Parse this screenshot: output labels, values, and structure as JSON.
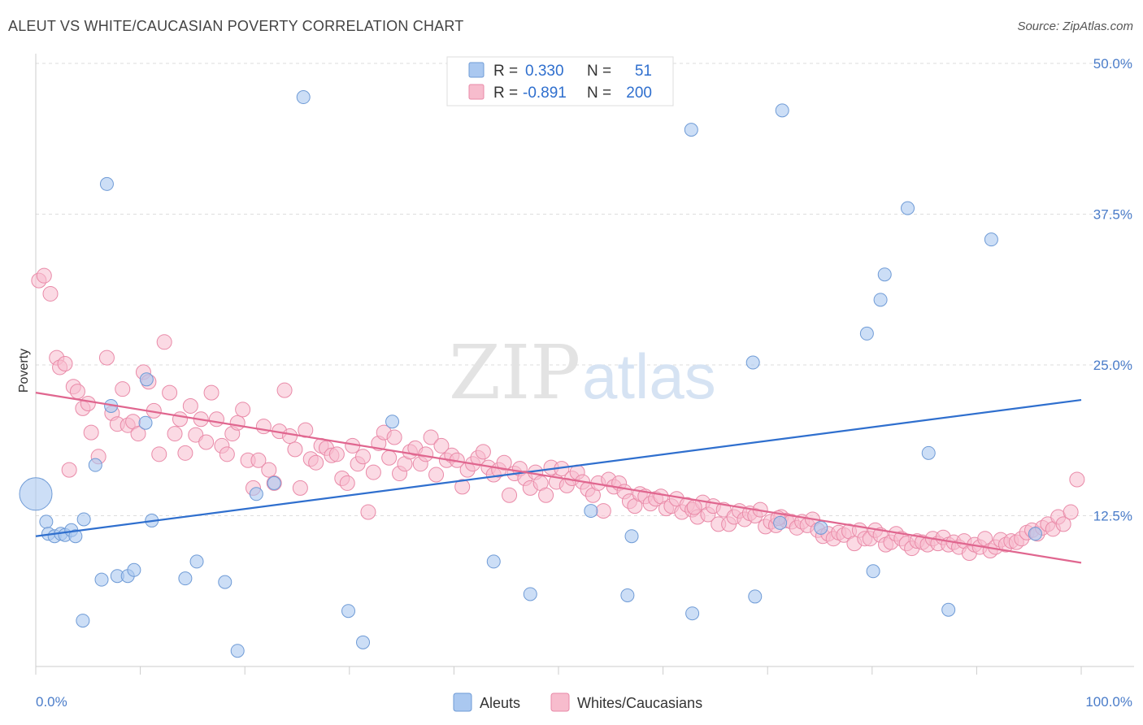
{
  "header": {
    "title": "ALEUT VS WHITE/CAUCASIAN POVERTY CORRELATION CHART",
    "source": "Source: ZipAtlas.com"
  },
  "watermark": {
    "zip": "ZIP",
    "atlas": "atlas"
  },
  "legend": {
    "rows": [
      {
        "r_label": "R =",
        "r_value": "0.330",
        "n_label": "N =",
        "n_value": "51",
        "color": "#aac8f0",
        "stroke": "#6f9bd6"
      },
      {
        "r_label": "R =",
        "r_value": "-0.891",
        "n_label": "N =",
        "n_value": "200",
        "color": "#f7bccd",
        "stroke": "#e98aa8"
      }
    ]
  },
  "colors": {
    "aleut_fill": "#aac8f0",
    "aleut_stroke": "#6f9bd6",
    "aleut_line": "#2f6fce",
    "white_fill": "#f7bccd",
    "white_stroke": "#e98aa8",
    "white_line": "#e0668f",
    "value_text": "#2f6fce"
  },
  "chart_data": {
    "type": "scatter",
    "title": "ALEUT VS WHITE/CAUCASIAN POVERTY CORRELATION CHART",
    "xlabel": "",
    "ylabel": "Poverty",
    "xlim": [
      0,
      100
    ],
    "ylim": [
      0,
      50
    ],
    "x_tick_labels": [
      "0.0%",
      "100.0%"
    ],
    "y_ticks": [
      12.5,
      25.0,
      37.5,
      50.0
    ],
    "y_tick_labels": [
      "12.5%",
      "25.0%",
      "37.5%",
      "50.0%"
    ],
    "grid": true,
    "legend_placement": "top-center",
    "series": [
      {
        "name": "Aleuts",
        "trend": [
          [
            0,
            10.8
          ],
          [
            100,
            22.1
          ]
        ],
        "points": [
          [
            0,
            14.3
          ],
          [
            1,
            12.0
          ],
          [
            1.2,
            11.0
          ],
          [
            1.8,
            10.8
          ],
          [
            2.4,
            11.0
          ],
          [
            2.8,
            10.9
          ],
          [
            3.4,
            11.3
          ],
          [
            3.8,
            10.8
          ],
          [
            4.6,
            12.2
          ],
          [
            4.5,
            3.8
          ],
          [
            5.7,
            16.7
          ],
          [
            6.3,
            7.2
          ],
          [
            6.8,
            40.0
          ],
          [
            7.2,
            21.6
          ],
          [
            7.8,
            7.5
          ],
          [
            8.8,
            7.5
          ],
          [
            9.4,
            8.0
          ],
          [
            10.5,
            20.2
          ],
          [
            10.6,
            23.8
          ],
          [
            11.1,
            12.1
          ],
          [
            14.3,
            7.3
          ],
          [
            15.4,
            8.7
          ],
          [
            18.1,
            7.0
          ],
          [
            19.3,
            1.3
          ],
          [
            21.1,
            14.3
          ],
          [
            22.8,
            15.2
          ],
          [
            25.6,
            47.2
          ],
          [
            29.9,
            4.6
          ],
          [
            31.3,
            2.0
          ],
          [
            34.1,
            20.3
          ],
          [
            43.8,
            8.7
          ],
          [
            47.3,
            6.0
          ],
          [
            53.1,
            12.9
          ],
          [
            56.6,
            5.9
          ],
          [
            57.0,
            10.8
          ],
          [
            62.7,
            44.5
          ],
          [
            62.8,
            4.4
          ],
          [
            68.6,
            25.2
          ],
          [
            68.8,
            5.8
          ],
          [
            71.4,
            46.1
          ],
          [
            71.2,
            11.9
          ],
          [
            75.1,
            11.5
          ],
          [
            79.5,
            27.6
          ],
          [
            80.1,
            7.9
          ],
          [
            80.8,
            30.4
          ],
          [
            81.2,
            32.5
          ],
          [
            83.4,
            38.0
          ],
          [
            85.4,
            17.7
          ],
          [
            87.3,
            4.7
          ],
          [
            91.4,
            35.4
          ],
          [
            95.6,
            11.0
          ]
        ]
      },
      {
        "name": "Whites/Caucasians",
        "trend": [
          [
            0,
            22.7
          ],
          [
            100,
            8.6
          ]
        ],
        "points": [
          [
            0.3,
            32.0
          ],
          [
            0.8,
            32.4
          ],
          [
            1.4,
            30.9
          ],
          [
            2.0,
            25.6
          ],
          [
            2.3,
            24.8
          ],
          [
            2.8,
            25.1
          ],
          [
            3.2,
            16.3
          ],
          [
            3.6,
            23.2
          ],
          [
            4.0,
            22.8
          ],
          [
            4.5,
            21.4
          ],
          [
            5.0,
            21.8
          ],
          [
            5.3,
            19.4
          ],
          [
            6.0,
            17.4
          ],
          [
            6.8,
            25.6
          ],
          [
            7.3,
            21.0
          ],
          [
            7.8,
            20.1
          ],
          [
            8.3,
            23.0
          ],
          [
            8.8,
            20.0
          ],
          [
            9.3,
            20.3
          ],
          [
            9.8,
            19.3
          ],
          [
            10.3,
            24.4
          ],
          [
            10.8,
            23.6
          ],
          [
            11.3,
            21.2
          ],
          [
            11.8,
            17.6
          ],
          [
            12.3,
            26.9
          ],
          [
            12.8,
            22.7
          ],
          [
            13.3,
            19.3
          ],
          [
            13.8,
            20.5
          ],
          [
            14.3,
            17.7
          ],
          [
            14.8,
            21.6
          ],
          [
            15.3,
            19.2
          ],
          [
            15.8,
            20.5
          ],
          [
            16.3,
            18.6
          ],
          [
            16.8,
            22.7
          ],
          [
            17.3,
            20.5
          ],
          [
            17.8,
            18.3
          ],
          [
            18.3,
            17.6
          ],
          [
            18.8,
            19.3
          ],
          [
            19.3,
            20.2
          ],
          [
            19.8,
            21.3
          ],
          [
            20.3,
            17.1
          ],
          [
            20.8,
            14.8
          ],
          [
            21.3,
            17.1
          ],
          [
            21.8,
            19.9
          ],
          [
            22.3,
            16.3
          ],
          [
            22.8,
            15.2
          ],
          [
            23.3,
            19.5
          ],
          [
            23.8,
            22.9
          ],
          [
            24.3,
            19.1
          ],
          [
            24.8,
            18.0
          ],
          [
            25.3,
            14.8
          ],
          [
            25.8,
            19.6
          ],
          [
            26.3,
            17.2
          ],
          [
            26.8,
            16.9
          ],
          [
            27.3,
            18.3
          ],
          [
            27.8,
            18.1
          ],
          [
            28.3,
            17.5
          ],
          [
            28.8,
            17.6
          ],
          [
            29.3,
            15.6
          ],
          [
            29.8,
            15.2
          ],
          [
            30.3,
            18.3
          ],
          [
            30.8,
            16.8
          ],
          [
            31.3,
            17.4
          ],
          [
            31.8,
            12.8
          ],
          [
            32.3,
            16.1
          ],
          [
            32.8,
            18.5
          ],
          [
            33.3,
            19.4
          ],
          [
            33.8,
            17.3
          ],
          [
            34.3,
            19.0
          ],
          [
            34.8,
            16.0
          ],
          [
            35.3,
            16.8
          ],
          [
            35.8,
            17.8
          ],
          [
            36.3,
            18.1
          ],
          [
            36.8,
            16.8
          ],
          [
            37.3,
            17.6
          ],
          [
            37.8,
            19.0
          ],
          [
            38.3,
            15.9
          ],
          [
            38.8,
            18.3
          ],
          [
            39.3,
            17.1
          ],
          [
            39.8,
            17.5
          ],
          [
            40.3,
            17.1
          ],
          [
            40.8,
            14.9
          ],
          [
            41.3,
            16.3
          ],
          [
            41.8,
            16.8
          ],
          [
            42.3,
            17.3
          ],
          [
            42.8,
            17.8
          ],
          [
            43.3,
            16.5
          ],
          [
            43.8,
            15.9
          ],
          [
            44.3,
            16.3
          ],
          [
            44.8,
            16.9
          ],
          [
            45.3,
            14.2
          ],
          [
            45.8,
            16.0
          ],
          [
            46.3,
            16.4
          ],
          [
            46.8,
            15.6
          ],
          [
            47.3,
            14.8
          ],
          [
            47.8,
            16.1
          ],
          [
            48.3,
            15.2
          ],
          [
            48.8,
            14.2
          ],
          [
            49.3,
            16.5
          ],
          [
            49.8,
            15.3
          ],
          [
            50.3,
            16.4
          ],
          [
            50.8,
            15.0
          ],
          [
            51.3,
            15.6
          ],
          [
            51.8,
            16.1
          ],
          [
            52.3,
            15.3
          ],
          [
            52.8,
            14.7
          ],
          [
            53.3,
            14.2
          ],
          [
            53.8,
            15.2
          ],
          [
            54.3,
            12.9
          ],
          [
            54.8,
            15.5
          ],
          [
            55.3,
            14.9
          ],
          [
            55.8,
            15.2
          ],
          [
            56.3,
            14.5
          ],
          [
            56.8,
            13.7
          ],
          [
            57.3,
            13.3
          ],
          [
            57.8,
            14.3
          ],
          [
            58.3,
            14.1
          ],
          [
            58.8,
            13.5
          ],
          [
            59.3,
            13.9
          ],
          [
            59.8,
            14.1
          ],
          [
            60.3,
            13.1
          ],
          [
            60.8,
            13.3
          ],
          [
            61.3,
            13.9
          ],
          [
            61.8,
            12.8
          ],
          [
            62.3,
            13.4
          ],
          [
            62.8,
            13.0
          ],
          [
            63.3,
            12.4
          ],
          [
            63.8,
            13.6
          ],
          [
            64.3,
            12.6
          ],
          [
            64.8,
            13.3
          ],
          [
            65.3,
            11.8
          ],
          [
            65.8,
            13.0
          ],
          [
            66.3,
            11.8
          ],
          [
            66.8,
            12.4
          ],
          [
            67.3,
            12.9
          ],
          [
            67.8,
            12.2
          ],
          [
            68.3,
            12.7
          ],
          [
            68.8,
            12.5
          ],
          [
            69.3,
            13.0
          ],
          [
            69.8,
            11.6
          ],
          [
            70.3,
            12.0
          ],
          [
            70.8,
            11.7
          ],
          [
            71.3,
            12.4
          ],
          [
            71.8,
            12.1
          ],
          [
            72.3,
            12.0
          ],
          [
            72.8,
            11.5
          ],
          [
            73.3,
            12.0
          ],
          [
            73.8,
            11.7
          ],
          [
            74.3,
            12.2
          ],
          [
            74.8,
            11.3
          ],
          [
            75.3,
            10.8
          ],
          [
            75.8,
            11.0
          ],
          [
            76.3,
            10.6
          ],
          [
            76.8,
            11.1
          ],
          [
            77.3,
            10.9
          ],
          [
            77.8,
            11.2
          ],
          [
            78.3,
            10.2
          ],
          [
            78.8,
            11.3
          ],
          [
            79.3,
            10.6
          ],
          [
            79.8,
            10.6
          ],
          [
            80.3,
            11.3
          ],
          [
            80.8,
            10.9
          ],
          [
            81.3,
            10.1
          ],
          [
            81.8,
            10.3
          ],
          [
            82.3,
            11.0
          ],
          [
            82.8,
            10.6
          ],
          [
            83.3,
            10.2
          ],
          [
            83.8,
            9.8
          ],
          [
            84.3,
            10.4
          ],
          [
            84.8,
            10.3
          ],
          [
            85.3,
            10.1
          ],
          [
            85.8,
            10.6
          ],
          [
            86.3,
            10.2
          ],
          [
            86.8,
            10.7
          ],
          [
            87.3,
            10.1
          ],
          [
            87.8,
            10.3
          ],
          [
            88.3,
            9.9
          ],
          [
            88.8,
            10.4
          ],
          [
            89.3,
            9.4
          ],
          [
            89.8,
            10.1
          ],
          [
            90.3,
            9.9
          ],
          [
            90.8,
            10.6
          ],
          [
            91.3,
            9.6
          ],
          [
            91.8,
            9.9
          ],
          [
            92.3,
            10.5
          ],
          [
            92.8,
            10.1
          ],
          [
            93.3,
            10.4
          ],
          [
            93.8,
            10.3
          ],
          [
            94.3,
            10.6
          ],
          [
            94.8,
            11.1
          ],
          [
            95.3,
            11.3
          ],
          [
            95.8,
            11.0
          ],
          [
            96.3,
            11.5
          ],
          [
            96.8,
            11.8
          ],
          [
            97.3,
            11.4
          ],
          [
            97.8,
            12.4
          ],
          [
            98.3,
            11.8
          ],
          [
            99.0,
            12.8
          ],
          [
            99.6,
            15.5
          ],
          [
            63.0,
            13.2
          ],
          [
            71.0,
            12.3
          ]
        ]
      }
    ]
  }
}
